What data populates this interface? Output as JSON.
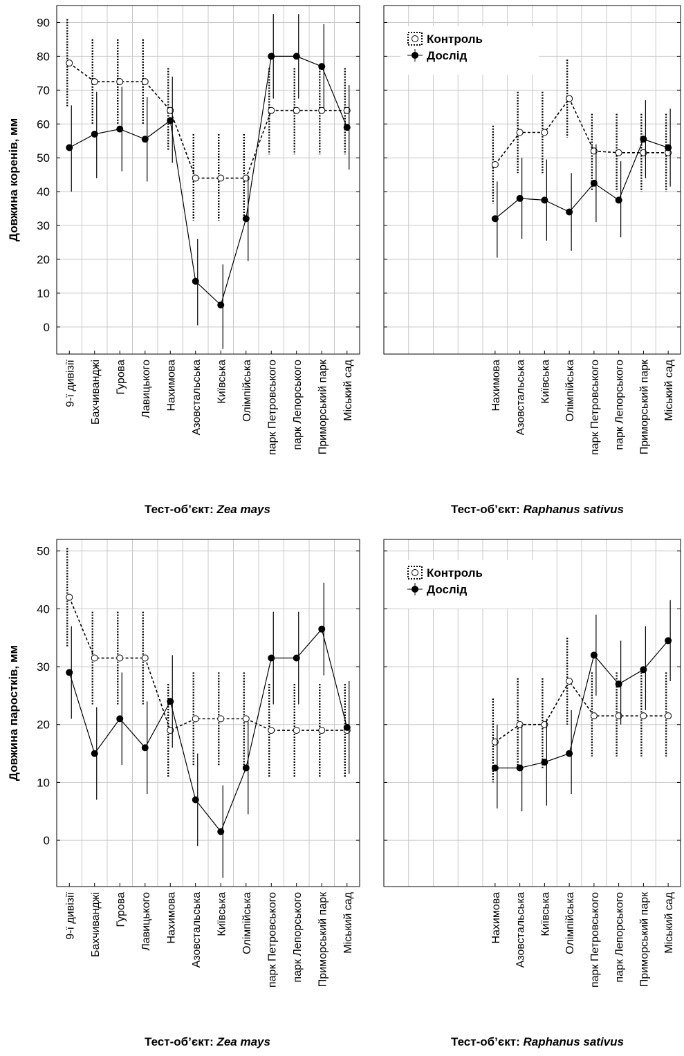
{
  "chart_data": [
    {
      "type": "line",
      "ylabel": "Довжина коренів, мм",
      "caption_prefix": "Тест-об’єкт: ",
      "caption_species": "Zea mays",
      "ylim": [
        -8,
        95
      ],
      "yticks": [
        0,
        10,
        20,
        30,
        40,
        50,
        60,
        70,
        80,
        90
      ],
      "categories": [
        "9-ї дивізії",
        "Бахчиванджі",
        "Гурова",
        "Лавицького",
        "Нахимова",
        "Азовстальська",
        "Київська",
        "Олімпійська",
        "парк Петровського",
        "парк Лепорського",
        "Приморський парк",
        "Міський сад"
      ],
      "grid": true,
      "legend": false,
      "series": [
        {
          "name": "Контроль",
          "style": "dotted",
          "marker": "open-circle",
          "values": [
            78,
            72.5,
            72.5,
            72.5,
            64,
            44,
            44,
            44,
            64,
            64,
            64,
            64
          ],
          "err_low": [
            65,
            60,
            60,
            60,
            52,
            31.5,
            31.5,
            31.5,
            51,
            51,
            51,
            51
          ],
          "err_high": [
            91,
            85,
            85,
            85,
            76.5,
            57,
            57,
            57,
            76.5,
            76.5,
            76.5,
            76.5
          ]
        },
        {
          "name": "Дослід",
          "style": "solid",
          "marker": "filled-diamond",
          "values": [
            53,
            57,
            58.5,
            55.5,
            61,
            13.5,
            6.5,
            32,
            80,
            80,
            77,
            59
          ],
          "err_low": [
            40,
            44,
            46,
            43,
            48.5,
            0.5,
            -6.5,
            19.5,
            67.5,
            67.5,
            64.5,
            46.5
          ],
          "err_high": [
            65.5,
            69.5,
            71,
            68,
            74,
            26,
            18.5,
            44.5,
            92.5,
            92.5,
            89.5,
            71.5
          ]
        }
      ]
    },
    {
      "type": "line",
      "ylabel": "",
      "caption_prefix": "Тест-об’єкт: ",
      "caption_species": "Raphanus sativus",
      "ylim": [
        -8,
        95
      ],
      "yticks": [
        0,
        10,
        20,
        30,
        40,
        50,
        60,
        70,
        80,
        90
      ],
      "categories": [
        "Нахимова",
        "Азовстальська",
        "Київська",
        "Олімпійська",
        "парк Петровського",
        "парк Лепорського",
        "Приморський парк",
        "Міський сад"
      ],
      "grid": true,
      "legend": true,
      "legend_position": "top-left",
      "series": [
        {
          "name": "Контроль",
          "style": "dotted",
          "marker": "open-circle",
          "values": [
            48,
            57.5,
            57.5,
            67.5,
            52,
            51.5,
            51.5,
            51.5
          ],
          "err_low": [
            36.5,
            45.5,
            45.5,
            56,
            40.5,
            40,
            40,
            40
          ],
          "err_high": [
            59.5,
            69.5,
            69.5,
            79,
            63,
            63,
            63,
            63
          ]
        },
        {
          "name": "Дослід",
          "style": "solid",
          "marker": "filled-diamond",
          "values": [
            32,
            38,
            37.5,
            34,
            42.5,
            37.5,
            55.5,
            53
          ],
          "err_low": [
            20.5,
            26,
            25.5,
            22.5,
            31,
            26.5,
            44,
            41.5
          ],
          "err_high": [
            43,
            50,
            49.5,
            45.5,
            54,
            49,
            67,
            64.5
          ]
        }
      ]
    },
    {
      "type": "line",
      "ylabel": "Довжина паростків, мм",
      "caption_prefix": "Тест-об’єкт: ",
      "caption_species": "Zea mays",
      "ylim": [
        -8,
        52
      ],
      "yticks": [
        0,
        10,
        20,
        30,
        40,
        50
      ],
      "categories": [
        "9-ї дивізії",
        "Бахчиванджі",
        "Гурова",
        "Лавицького",
        "Нахимова",
        "Азовстальська",
        "Київська",
        "Олімпійська",
        "парк Петровського",
        "парк Лепорського",
        "Приморський парк",
        "Міський сад"
      ],
      "grid": true,
      "legend": false,
      "series": [
        {
          "name": "Контроль",
          "style": "dotted",
          "marker": "open-circle",
          "values": [
            42,
            31.5,
            31.5,
            31.5,
            19,
            21,
            21,
            21,
            19,
            19,
            19,
            19
          ],
          "err_low": [
            33.5,
            23.5,
            23.5,
            23.5,
            11,
            13,
            13,
            13,
            11,
            11,
            11,
            11
          ],
          "err_high": [
            50.5,
            39.5,
            39.5,
            39.5,
            27,
            29,
            29,
            29,
            27,
            27,
            27,
            27
          ]
        },
        {
          "name": "Дослід",
          "style": "solid",
          "marker": "filled-diamond",
          "values": [
            29,
            15,
            21,
            16,
            24,
            7,
            1.5,
            12.5,
            31.5,
            31.5,
            36.5,
            19.5
          ],
          "err_low": [
            21,
            7,
            13,
            8,
            16,
            -1,
            -6.5,
            4.5,
            23.5,
            23.5,
            28.5,
            11.5
          ],
          "err_high": [
            37,
            23,
            29,
            24,
            32,
            15,
            9.5,
            20.5,
            39.5,
            39.5,
            44.5,
            27.5
          ]
        }
      ]
    },
    {
      "type": "line",
      "ylabel": "",
      "caption_prefix": "Тест-об’єкт: ",
      "caption_species": "Raphanus sativus",
      "ylim": [
        -8,
        52
      ],
      "yticks": [
        0,
        10,
        20,
        30,
        40,
        50
      ],
      "categories": [
        "Нахимова",
        "Азовстальська",
        "Київська",
        "Олімпійська",
        "парк Петровського",
        "парк Лепорського",
        "Приморський парк",
        "Міський сад"
      ],
      "grid": true,
      "legend": true,
      "legend_position": "top-left",
      "series": [
        {
          "name": "Контроль",
          "style": "dotted",
          "marker": "open-circle",
          "values": [
            17,
            20,
            20,
            27.5,
            21.5,
            21.5,
            21.5,
            21.5
          ],
          "err_low": [
            10,
            12.5,
            12.5,
            20,
            14.5,
            14.5,
            14.5,
            14.5
          ],
          "err_high": [
            24.5,
            28,
            28,
            35,
            29,
            29,
            29,
            29
          ]
        },
        {
          "name": "Дослід",
          "style": "solid",
          "marker": "filled-diamond",
          "values": [
            12.5,
            12.5,
            13.5,
            15,
            32,
            27,
            29.5,
            34.5
          ],
          "err_low": [
            5.5,
            5,
            6,
            8,
            25,
            20,
            22.5,
            27.5
          ],
          "err_high": [
            20,
            20,
            21,
            22.5,
            39,
            34.5,
            37,
            41.5
          ]
        }
      ]
    }
  ]
}
